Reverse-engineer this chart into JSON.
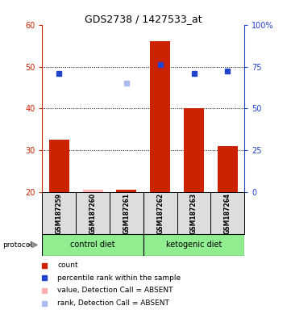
{
  "title": "GDS2738 / 1427533_at",
  "samples": [
    "GSM187259",
    "GSM187260",
    "GSM187261",
    "GSM187262",
    "GSM187263",
    "GSM187264"
  ],
  "bar_values": [
    32.5,
    20.5,
    20.5,
    56.0,
    40.0,
    31.0
  ],
  "bar_absent": [
    false,
    true,
    false,
    false,
    false,
    false
  ],
  "blue_pct": [
    71.0,
    null,
    65.0,
    76.0,
    71.0,
    72.5
  ],
  "blue_absent": [
    false,
    null,
    true,
    false,
    false,
    false
  ],
  "ylim_left": [
    20,
    60
  ],
  "ylim_right": [
    0,
    100
  ],
  "left_ticks": [
    20,
    30,
    40,
    50,
    60
  ],
  "right_ticks": [
    0,
    25,
    50,
    75,
    100
  ],
  "right_tick_labels": [
    "0",
    "25",
    "50",
    "75",
    "100%"
  ],
  "bar_color": "#CC2200",
  "bar_absent_color": "#FFB0B0",
  "blue_color": "#2244CC",
  "blue_absent_color": "#AABBEE",
  "sample_box_color": "#DDDDDD",
  "left_axis_color": "#CC2200",
  "right_axis_color": "#2244CC",
  "group_labels": [
    "control diet",
    "ketogenic diet"
  ],
  "group_color": "#90EE90"
}
